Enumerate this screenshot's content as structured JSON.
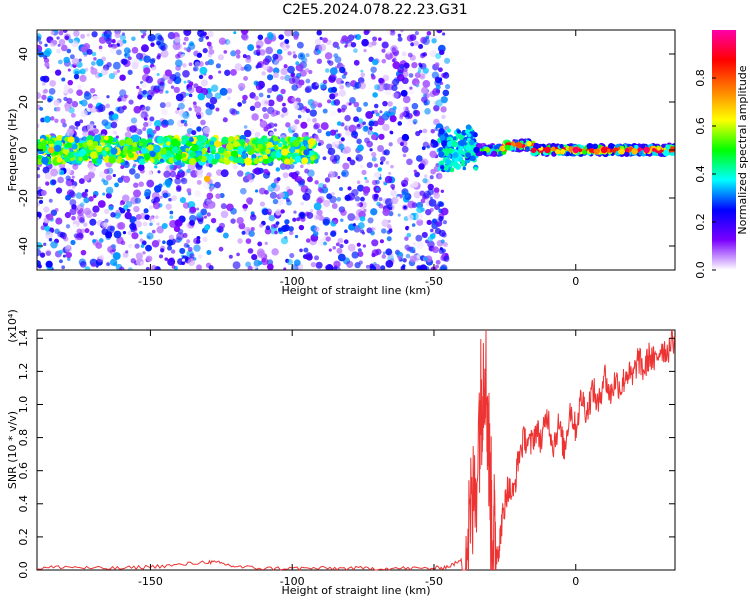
{
  "figure_title": "C2E5.2024.078.22.23.G31",
  "chart_data": [
    {
      "type": "heatmap",
      "xlabel": "Height of straight line (km)",
      "ylabel": "Frequency (Hz)",
      "xlim": [
        -190,
        35
      ],
      "ylim": [
        -50,
        50
      ],
      "xticks": [
        -150,
        -100,
        -50,
        0
      ],
      "yticks": [
        -40,
        -20,
        0,
        20,
        40
      ],
      "grid": false,
      "colorbar": {
        "label": "Normalized spectral amplitude",
        "range": [
          0,
          1
        ],
        "ticks": [
          0.0,
          0.2,
          0.4,
          0.6,
          0.8
        ],
        "colormap": [
          "#ffffff",
          "#7a00ff",
          "#0000ff",
          "#00ffff",
          "#00ff00",
          "#ffff00",
          "#ff7f00",
          "#ff0000",
          "#ff00aa"
        ]
      },
      "description_points": [
        {
          "x": -185,
          "y": 0,
          "v": 0.7
        },
        {
          "x": -178,
          "y": -2,
          "v": 0.45
        },
        {
          "x": -160,
          "y": 3,
          "v": 0.55
        },
        {
          "x": -150,
          "y": 1,
          "v": 0.6
        },
        {
          "x": -140,
          "y": -3,
          "v": 0.5
        },
        {
          "x": -135,
          "y": -2,
          "v": 0.45
        },
        {
          "x": -130,
          "y": -12,
          "v": 0.7
        },
        {
          "x": -125,
          "y": 0,
          "v": 0.45
        },
        {
          "x": -100,
          "y": 0,
          "v": 0.35
        },
        {
          "x": -95,
          "y": -1,
          "v": 0.3
        },
        {
          "x": -45,
          "y": -5,
          "v": 0.35
        },
        {
          "x": -40,
          "y": 3,
          "v": 0.3
        },
        {
          "x": -35,
          "y": 0,
          "v": 0.25
        },
        {
          "x": -20,
          "y": 2,
          "v": 0.8
        },
        {
          "x": -10,
          "y": 0,
          "v": 0.9
        },
        {
          "x": 0,
          "y": 0,
          "v": 0.95
        },
        {
          "x": 10,
          "y": 0,
          "v": 0.9
        },
        {
          "x": 25,
          "y": 0,
          "v": 0.95
        }
      ]
    },
    {
      "type": "line",
      "xlabel": "Height of straight line (km)",
      "ylabel": "SNR (10 * v/v)",
      "yscale_label": "(x10⁴)",
      "xlim": [
        -190,
        35
      ],
      "ylim": [
        0,
        1.45
      ],
      "xticks": [
        -150,
        -100,
        -50,
        0
      ],
      "yticks": [
        0.0,
        0.2,
        0.4,
        0.6,
        0.8,
        1.0,
        1.2,
        1.4
      ],
      "grid": false,
      "line_color": "#ee3333",
      "series": [
        {
          "x": [
            -190,
            -180,
            -170,
            -160,
            -150,
            -140,
            -130,
            -125,
            -120,
            -110,
            -100,
            -90,
            -80,
            -70,
            -60,
            -50,
            -45,
            -40,
            -38,
            -36,
            -34,
            -33,
            -32,
            -31,
            -30,
            -29,
            -28,
            -27,
            -26,
            -25,
            -24,
            -22,
            -20,
            -18,
            -16,
            -14,
            -12,
            -10,
            -8,
            -6,
            -4,
            -2,
            0,
            2,
            4,
            6,
            8,
            10,
            12,
            14,
            16,
            18,
            20,
            22,
            24,
            26,
            28,
            30,
            32,
            35
          ],
          "values": [
            0.01,
            0.02,
            0.01,
            0.01,
            0.02,
            0.03,
            0.05,
            0.04,
            0.02,
            0.01,
            0.01,
            0.01,
            0.01,
            0.01,
            0.01,
            0.01,
            0.02,
            0.06,
            0.2,
            0.4,
            0.9,
            1.1,
            1.3,
            0.9,
            0.4,
            0.2,
            0.1,
            0.15,
            0.3,
            0.4,
            0.5,
            0.45,
            0.7,
            0.8,
            0.75,
            0.85,
            0.78,
            0.95,
            0.75,
            0.88,
            0.72,
            0.98,
            0.85,
            1.05,
            0.95,
            1.1,
            0.98,
            1.2,
            1.05,
            1.15,
            1.1,
            1.2,
            1.15,
            1.28,
            1.2,
            1.3,
            1.25,
            1.35,
            1.32,
            1.4
          ]
        }
      ]
    }
  ]
}
